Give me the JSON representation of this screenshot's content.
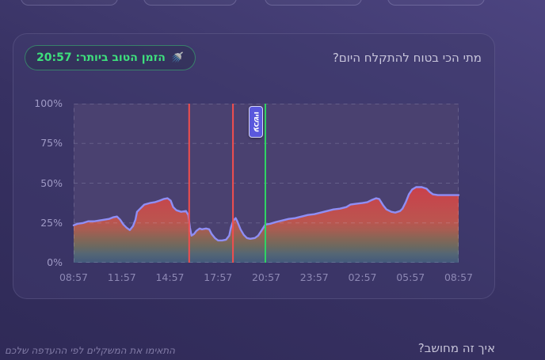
{
  "header": {
    "title": "מתי הכי בטוח להתקלח היום?",
    "badge": {
      "emoji": "🚿",
      "label": "הזמן הטוב ביותר: 20:57",
      "best_time": "20:57"
    }
  },
  "footer": {
    "heading": "איך זה מחושב?",
    "note": "התאימו את המשקלים לפי ההעדפה שלכם"
  },
  "colors": {
    "badge_green": "#3ee07d",
    "risk_line_red": "#f14e4e",
    "now_line_green": "#2fd464",
    "series_line_purple": "#8f8ef5",
    "now_label_bg": "#5a58dd",
    "plot_bg": "#4a4170"
  },
  "chart_data": {
    "type": "area",
    "title": "",
    "xlabel": "",
    "ylabel": "",
    "x_range_hours": [
      0,
      24
    ],
    "ylim": [
      0,
      100
    ],
    "grid": true,
    "x_ticks": [
      "08:57",
      "11:57",
      "14:57",
      "17:57",
      "20:57",
      "23:57",
      "02:57",
      "05:57",
      "08:57"
    ],
    "y_ticks": [
      "100%",
      "75%",
      "50%",
      "25%",
      "0%"
    ],
    "series": [
      {
        "name": "shower-safety-percent",
        "points": [
          [
            0,
            23.5
          ],
          [
            0.25,
            24.5
          ],
          [
            0.6,
            25
          ],
          [
            0.9,
            26
          ],
          [
            1.3,
            26
          ],
          [
            1.6,
            26.5
          ],
          [
            1.9,
            27
          ],
          [
            2.2,
            27.5
          ],
          [
            2.45,
            28.5
          ],
          [
            2.7,
            29
          ],
          [
            2.9,
            27
          ],
          [
            3.1,
            24
          ],
          [
            3.3,
            22
          ],
          [
            3.5,
            20.5
          ],
          [
            3.7,
            23
          ],
          [
            3.85,
            27
          ],
          [
            3.95,
            32
          ],
          [
            4.15,
            34
          ],
          [
            4.4,
            36.5
          ],
          [
            4.75,
            37.5
          ],
          [
            5.05,
            38
          ],
          [
            5.35,
            39
          ],
          [
            5.6,
            40
          ],
          [
            5.85,
            40.5
          ],
          [
            6.05,
            39
          ],
          [
            6.2,
            35
          ],
          [
            6.4,
            33
          ],
          [
            6.7,
            32
          ],
          [
            7.0,
            32.5
          ],
          [
            7.15,
            30
          ],
          [
            7.25,
            22
          ],
          [
            7.35,
            17
          ],
          [
            7.5,
            18
          ],
          [
            7.65,
            20
          ],
          [
            7.85,
            21.5
          ],
          [
            8.0,
            21
          ],
          [
            8.25,
            21.5
          ],
          [
            8.45,
            21
          ],
          [
            8.6,
            18
          ],
          [
            8.8,
            15.5
          ],
          [
            9.0,
            14
          ],
          [
            9.25,
            14
          ],
          [
            9.5,
            14.5
          ],
          [
            9.7,
            17
          ],
          [
            9.8,
            22
          ],
          [
            9.95,
            26.5
          ],
          [
            10.1,
            28
          ],
          [
            10.2,
            26
          ],
          [
            10.4,
            21
          ],
          [
            10.6,
            17.5
          ],
          [
            10.8,
            15.5
          ],
          [
            11.0,
            15
          ],
          [
            11.3,
            15.5
          ],
          [
            11.5,
            17
          ],
          [
            11.7,
            20
          ],
          [
            11.95,
            24
          ],
          [
            12.25,
            24.5
          ],
          [
            12.6,
            25.5
          ],
          [
            13.0,
            26.5
          ],
          [
            13.4,
            27.5
          ],
          [
            13.8,
            28
          ],
          [
            14.2,
            29
          ],
          [
            14.6,
            30
          ],
          [
            15.0,
            30.5
          ],
          [
            15.4,
            31.5
          ],
          [
            15.8,
            32.5
          ],
          [
            16.2,
            33.5
          ],
          [
            16.6,
            34
          ],
          [
            17.0,
            35
          ],
          [
            17.25,
            36.5
          ],
          [
            17.6,
            37
          ],
          [
            18.0,
            37.5
          ],
          [
            18.3,
            38
          ],
          [
            18.6,
            39.5
          ],
          [
            18.85,
            40.5
          ],
          [
            19.05,
            40
          ],
          [
            19.3,
            36
          ],
          [
            19.5,
            33.5
          ],
          [
            19.8,
            32
          ],
          [
            20.05,
            31.5
          ],
          [
            20.35,
            32.5
          ],
          [
            20.5,
            34
          ],
          [
            20.7,
            38
          ],
          [
            20.9,
            43
          ],
          [
            21.1,
            46
          ],
          [
            21.35,
            47.5
          ],
          [
            21.7,
            47.5
          ],
          [
            22.0,
            46.5
          ],
          [
            22.2,
            44.5
          ],
          [
            22.4,
            43
          ],
          [
            22.7,
            42.5
          ],
          [
            23.2,
            42.5
          ],
          [
            24,
            42.5
          ]
        ]
      }
    ],
    "fill_gradient_top_to_bottom": [
      "#ee4040",
      "#db5a46",
      "#c36449",
      "#97704f",
      "#77745a",
      "#587175",
      "#41607f"
    ],
    "markers": [
      {
        "kind": "risk",
        "hour": 7.2,
        "color": "#f14e4e"
      },
      {
        "kind": "risk",
        "hour": 9.93,
        "color": "#f14e4e"
      },
      {
        "kind": "now",
        "hour": 11.95,
        "color": "#2fd464",
        "label": "עכשיו"
      }
    ],
    "legend": null
  }
}
